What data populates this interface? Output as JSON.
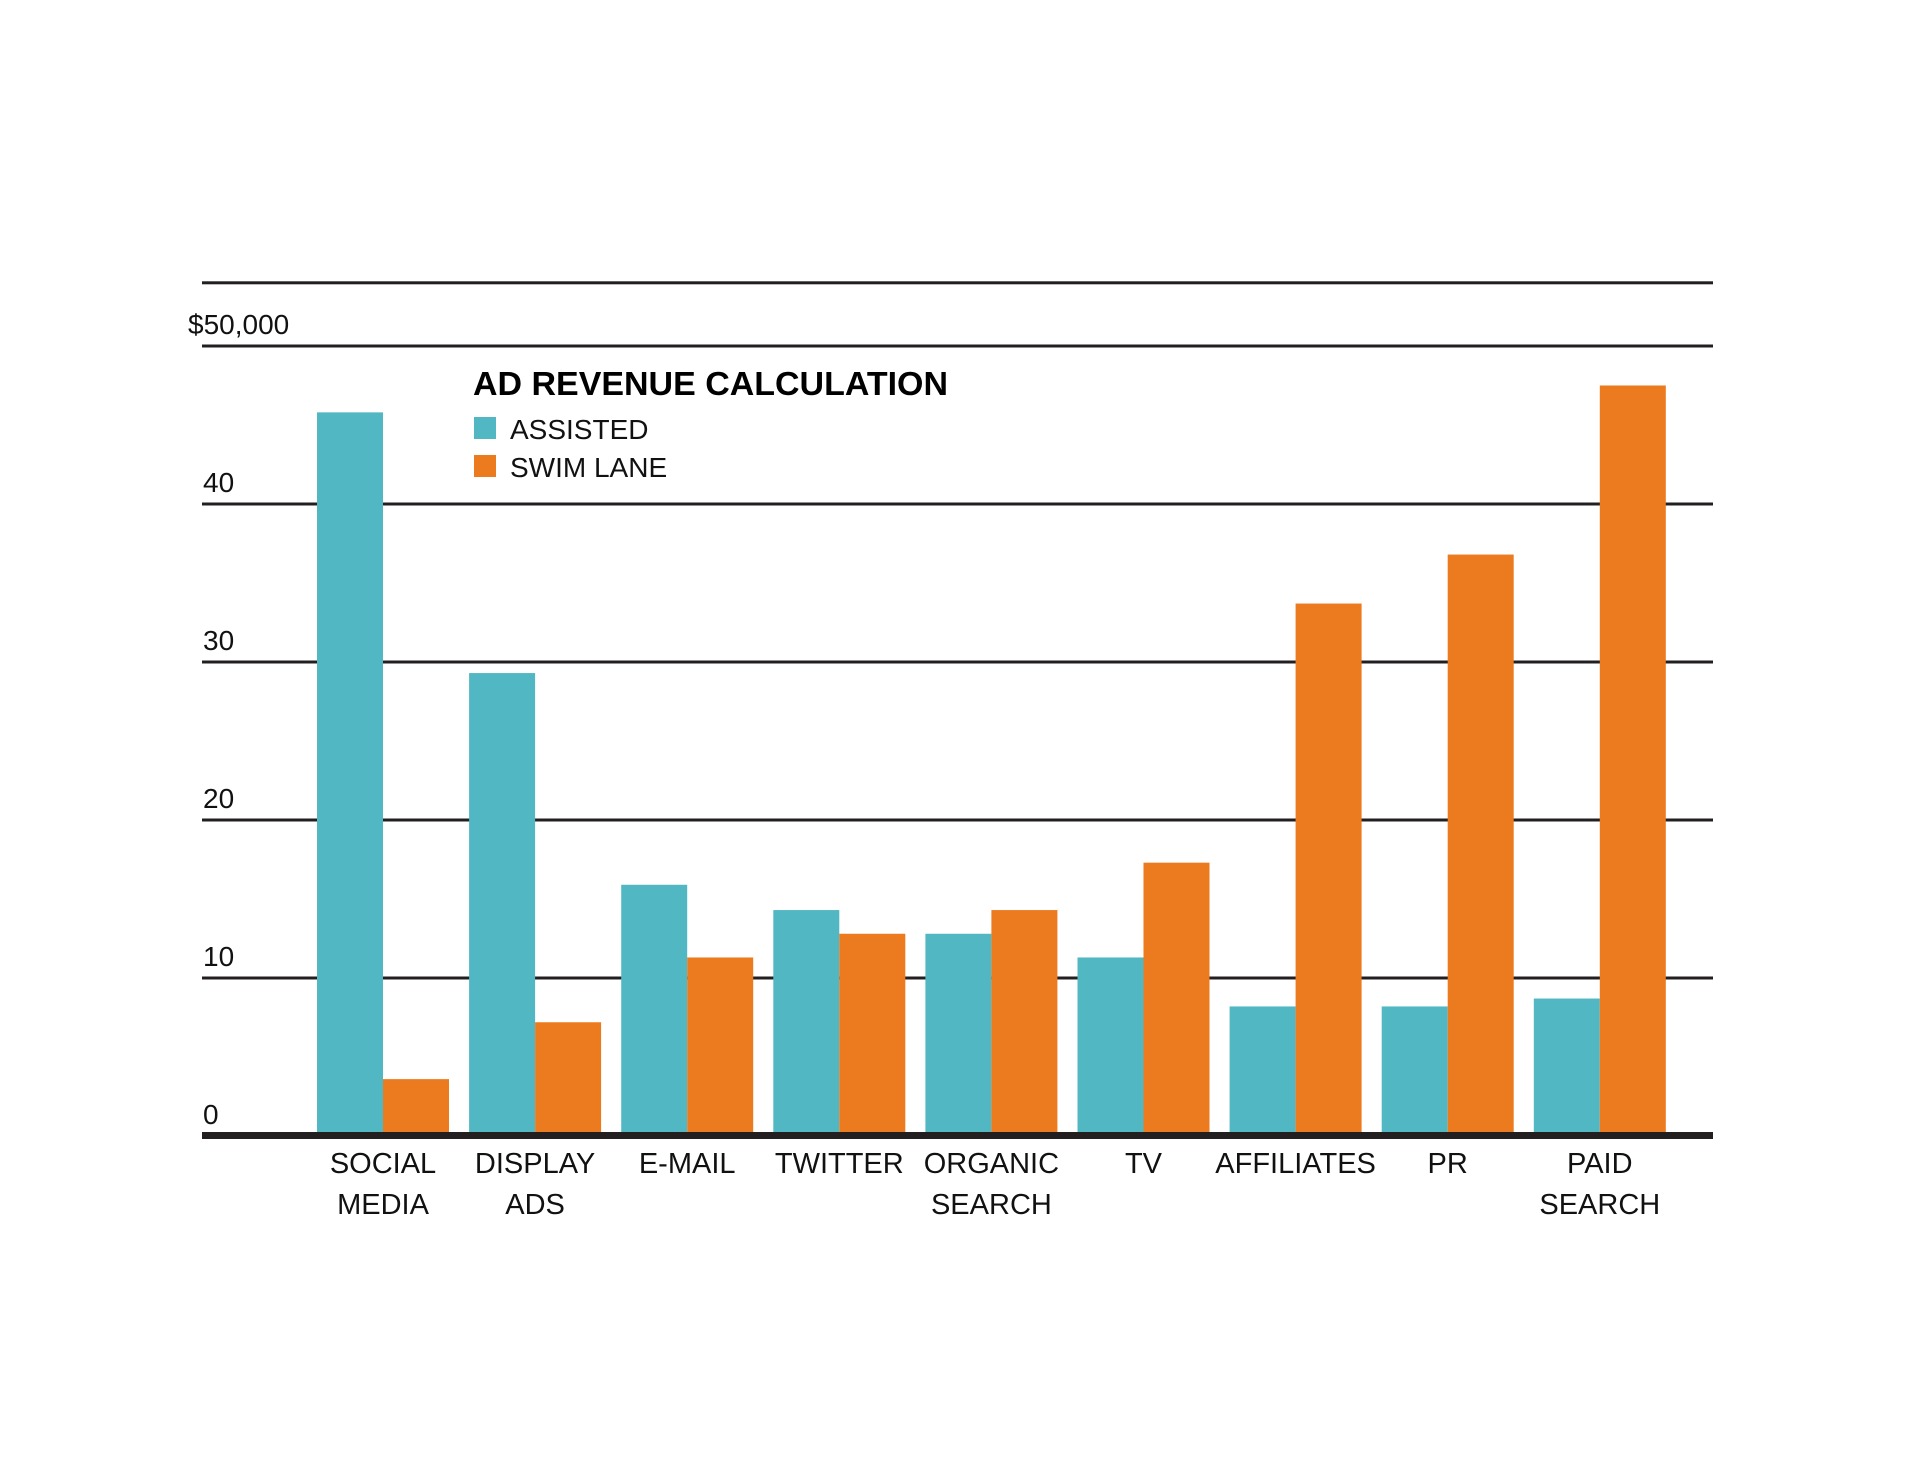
{
  "chart_data": {
    "type": "bar",
    "title": "AD REVENUE CALCULATION",
    "xlabel": "",
    "ylabel": "",
    "categories": [
      [
        "SOCIAL",
        "MEDIA"
      ],
      [
        "DISPLAY",
        "ADS"
      ],
      [
        "E-MAIL"
      ],
      [
        "TWITTER"
      ],
      [
        "ORGANIC",
        "SEARCH"
      ],
      [
        "TV"
      ],
      [
        "AFFILIATES"
      ],
      [
        "PR"
      ],
      [
        "PAID",
        "SEARCH"
      ]
    ],
    "series": [
      {
        "name": "ASSISTED",
        "color": "#51B8C3",
        "values": [
          45.8,
          29.3,
          15.9,
          14.3,
          12.8,
          11.3,
          8.2,
          8.2,
          8.7
        ]
      },
      {
        "name": "SWIM LANE",
        "color": "#EC7A1E",
        "values": [
          3.6,
          7.2,
          11.3,
          12.8,
          14.3,
          17.3,
          33.7,
          36.8,
          47.5
        ]
      }
    ],
    "value_unit": "thousands of dollars",
    "yticks": [
      0,
      10,
      20,
      30,
      40,
      50,
      54
    ],
    "ytick_labels": [
      "0",
      "10",
      "20",
      "30",
      "40",
      "$50,000",
      ""
    ],
    "ylim": [
      0,
      54
    ],
    "grid": true,
    "legend": {
      "placement": "top-left",
      "entries": [
        "ASSISTED",
        "SWIM LANE"
      ]
    },
    "colors": {
      "axis": "#231F20",
      "grid": "#231F20"
    }
  }
}
